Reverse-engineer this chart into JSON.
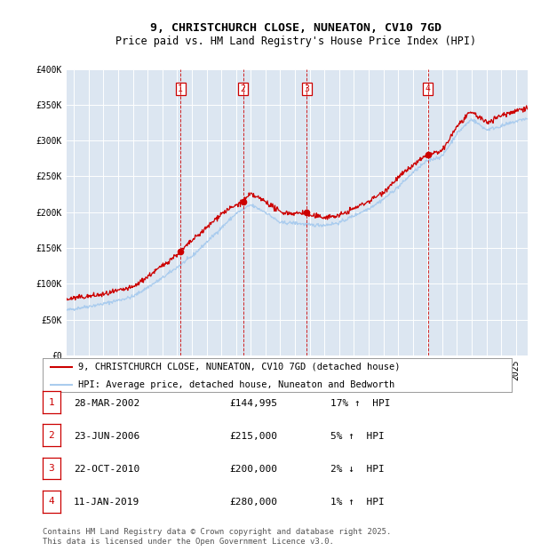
{
  "title": "9, CHRISTCHURCH CLOSE, NUNEATON, CV10 7GD",
  "subtitle": "Price paid vs. HM Land Registry's House Price Index (HPI)",
  "ylim": [
    0,
    400000
  ],
  "yticks": [
    0,
    50000,
    100000,
    150000,
    200000,
    250000,
    300000,
    350000,
    400000
  ],
  "ytick_labels": [
    "£0",
    "£50K",
    "£100K",
    "£150K",
    "£200K",
    "£250K",
    "£300K",
    "£350K",
    "£400K"
  ],
  "xlim_start": 1994.5,
  "xlim_end": 2025.8,
  "background_color": "#dce6f1",
  "grid_color": "#ffffff",
  "red_line_color": "#cc0000",
  "blue_line_color": "#aaccee",
  "vline_color": "#cc0000",
  "marker_box_color": "#cc0000",
  "sales": [
    {
      "num": 1,
      "year": 2002.23,
      "price": 144995,
      "label": "28-MAR-2002",
      "price_str": "£144,995",
      "pct": "17%",
      "dir": "↑"
    },
    {
      "num": 2,
      "year": 2006.48,
      "price": 215000,
      "label": "23-JUN-2006",
      "price_str": "£215,000",
      "pct": "5%",
      "dir": "↑"
    },
    {
      "num": 3,
      "year": 2010.81,
      "price": 200000,
      "label": "22-OCT-2010",
      "price_str": "£200,000",
      "pct": "2%",
      "dir": "↓"
    },
    {
      "num": 4,
      "year": 2019.03,
      "price": 280000,
      "label": "11-JAN-2019",
      "price_str": "£280,000",
      "pct": "1%",
      "dir": "↑"
    }
  ],
  "legend_line1": "9, CHRISTCHURCH CLOSE, NUNEATON, CV10 7GD (detached house)",
  "legend_line2": "HPI: Average price, detached house, Nuneaton and Bedworth",
  "footer": "Contains HM Land Registry data © Crown copyright and database right 2025.\nThis data is licensed under the Open Government Licence v3.0.",
  "title_fontsize": 9.5,
  "subtitle_fontsize": 8.5,
  "tick_fontsize": 7,
  "legend_fontsize": 7.5,
  "table_fontsize": 8,
  "footer_fontsize": 6.5
}
